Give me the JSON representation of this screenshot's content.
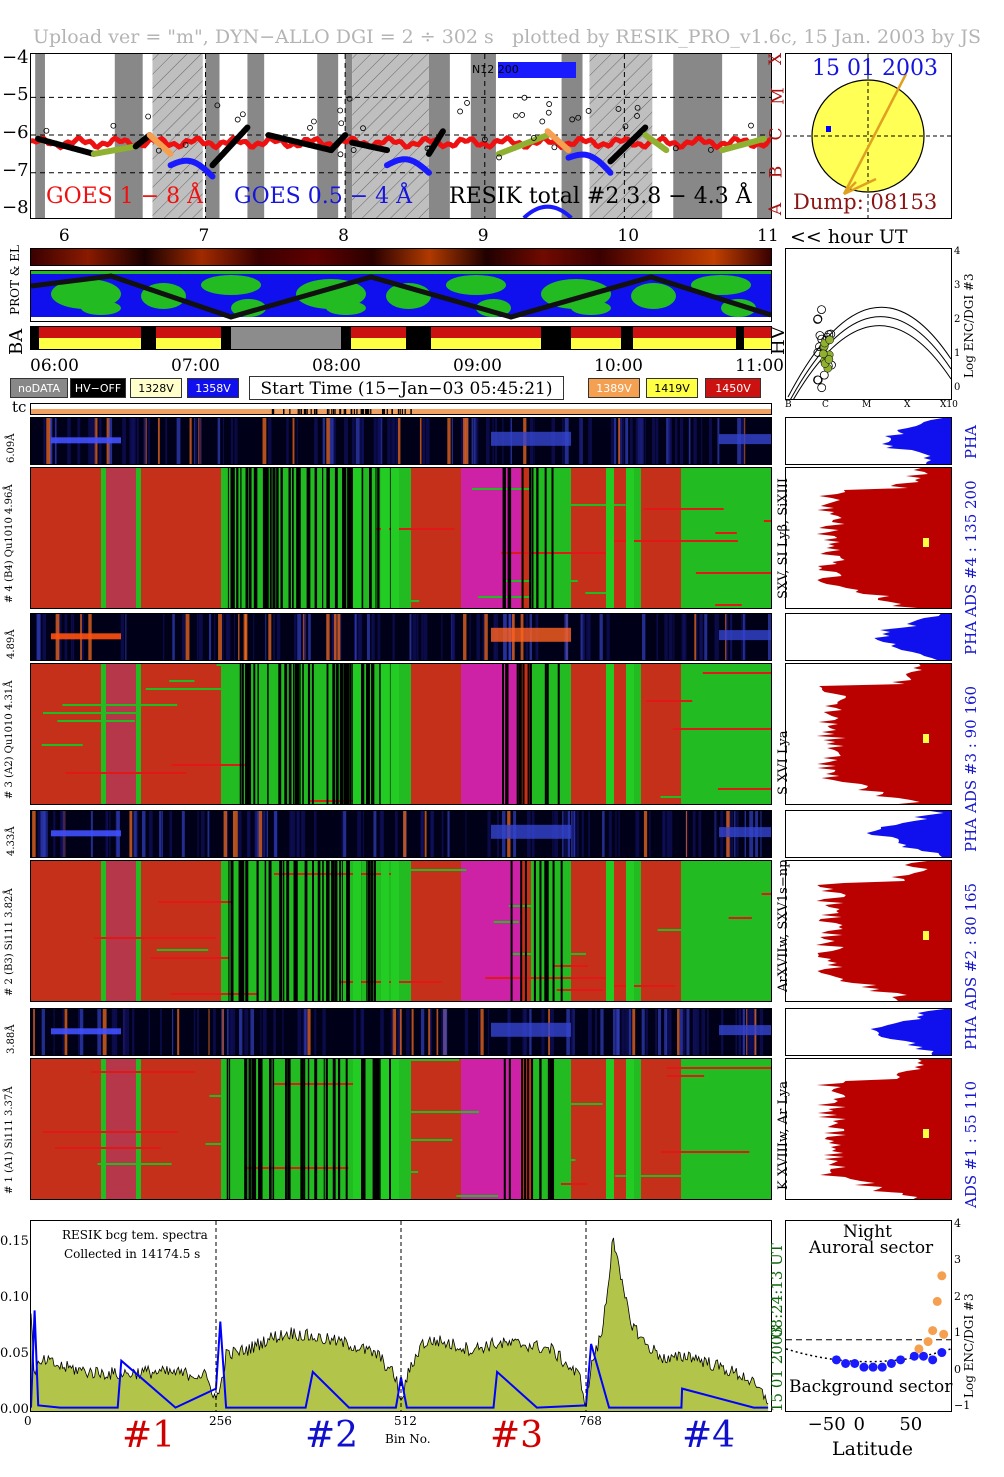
{
  "header": {
    "left": "Upload ver = \"m\", DYN−ALLO DGI =   2 ÷ 302 s",
    "right": "plotted by RESIK_PRO_v1.6c, 15 Jan. 2003 by JS"
  },
  "goes_panel": {
    "yticks": [
      "−4",
      "−5",
      "−6",
      "−7",
      "−8"
    ],
    "class_labels": [
      "X",
      "M",
      "C",
      "B",
      "A"
    ],
    "xticks": [
      "6",
      "7",
      "8",
      "9",
      "10",
      "11"
    ],
    "legend_goes_long": "GOES 1 − 8 Å",
    "legend_goes_short": "GOES 0.5 − 4 Å",
    "legend_resik": "RESIK total #2  3.8 − 4.3 Å",
    "noaa_tag": "N12 200",
    "hour_label": "<< hour UT"
  },
  "sun_panel": {
    "date": "15 01 2003",
    "dump": "Dump: 08153"
  },
  "orbit_panel": {
    "prot_label": "PROT & EL",
    "ba_label": "BA",
    "hv_label": "HV",
    "times": [
      "06:00",
      "07:00",
      "08:00",
      "09:00",
      "10:00",
      "11:00"
    ]
  },
  "legend": {
    "nodata": "noDATA",
    "hvoff": "HV−OFF",
    "v1328": "1328V",
    "v1358": "1358V",
    "start_time": "Start Time (15−Jan−03 05:45:21)",
    "v1389": "1389V",
    "v1419": "1419V",
    "v1450": "1450V",
    "tc": "tc"
  },
  "enc_panel": {
    "ylabel": "Log ENC/DGI #3",
    "yticks": [
      "4",
      "3",
      "2",
      "1",
      "0"
    ],
    "xticks": [
      "B",
      "C",
      "M",
      "X",
      "X10"
    ]
  },
  "channels": [
    {
      "pha_label": "6.09Å",
      "spec_label": "# 4 (B4) Qu1010 4.96Å",
      "lines": "SXV, SI Lyβ, SiXIII",
      "ads": "ADS #4 :   135 200",
      "pha": "PHA"
    },
    {
      "pha_label": "4.89Å",
      "spec_label": "# 3 (A2) Qu1010 4.31Å",
      "lines": "S XVI Lya",
      "ads": "ADS #3 :    90 160",
      "pha": "PHA"
    },
    {
      "pha_label": "4.33Å",
      "spec_label": "# 2 (B3) Si111 3.82Å",
      "lines": "ArXVIIw, SXV1s−np",
      "ads": "ADS #2 :    80 165",
      "pha": "PHA"
    },
    {
      "pha_label": "3.88Å",
      "spec_label": "# 1 (A1) Si111 3.37Å",
      "lines": "K XVIIIw, Ar Lya",
      "ads": "ADS #1 :    55 110",
      "pha": "PHA"
    }
  ],
  "spectrum": {
    "note1": "RESIK bcg tem. spectra",
    "note2": "Collected in 14174.5 s",
    "yticks": [
      "0.15",
      "0.10",
      "0.05",
      "0.00"
    ],
    "xticks": [
      "0",
      "256",
      "512",
      "768"
    ],
    "xlabel": "Bin No.",
    "side_time": "08:24:13 UT",
    "side_date": "15 01 2003",
    "channel_labels": [
      "#1",
      "#2",
      "#3",
      "#4"
    ],
    "channel_colors": [
      "#d10000",
      "#1010cc",
      "#d10000",
      "#1010cc"
    ]
  },
  "lat_panel": {
    "title1": "Night",
    "title2": "Auroral sector",
    "bottom": "Background sector",
    "xlabel": "Latitude",
    "xticks": [
      "−50",
      "0",
      "50"
    ],
    "yticks": [
      "4",
      "3",
      "2",
      "1",
      "0",
      "−1"
    ],
    "ylabel": "Log ENC/DGI #3"
  },
  "chart_data": {
    "type": "line",
    "title": "RESIK bcg tem. spectra",
    "xlabel": "Bin No.",
    "ylabel": "",
    "xlim": [
      0,
      1024
    ],
    "ylim": [
      0,
      0.17
    ],
    "x_ticks": [
      0,
      256,
      512,
      768
    ],
    "y_ticks": [
      0.0,
      0.05,
      0.1,
      0.15
    ],
    "series": [
      {
        "name": "",
        "color": "#b2c44a",
        "x": [
          0,
          5,
          10,
          20,
          40,
          80,
          120,
          160,
          200,
          240,
          250,
          256,
          262,
          270,
          300,
          330,
          360,
          400,
          440,
          480,
          505,
          512,
          520,
          540,
          560,
          580,
          610,
          640,
          680,
          720,
          760,
          768,
          775,
          790,
          800,
          805,
          815,
          830,
          850,
          880,
          910,
          950,
          990,
          1020
        ],
        "values": [
          0.085,
          0.03,
          0.04,
          0.045,
          0.04,
          0.035,
          0.033,
          0.035,
          0.034,
          0.032,
          0.02,
          0.01,
          0.02,
          0.05,
          0.055,
          0.065,
          0.07,
          0.065,
          0.06,
          0.05,
          0.03,
          0.005,
          0.03,
          0.06,
          0.063,
          0.06,
          0.055,
          0.06,
          0.06,
          0.055,
          0.03,
          0.005,
          0.04,
          0.07,
          0.12,
          0.16,
          0.12,
          0.08,
          0.06,
          0.045,
          0.05,
          0.04,
          0.03,
          0.01
        ]
      },
      {
        "name": "",
        "color": "#0000ff",
        "x": [
          0,
          5,
          10,
          40,
          100,
          120,
          125,
          200,
          256,
          262,
          270,
          300,
          380,
          390,
          440,
          505,
          512,
          520,
          560,
          640,
          645,
          700,
          768,
          775,
          800,
          900,
          901,
          1000,
          1020
        ],
        "values": [
          0.003,
          0.09,
          0.005,
          0.003,
          0.003,
          0.003,
          0.045,
          0.003,
          0.02,
          0.08,
          0.003,
          0.003,
          0.003,
          0.035,
          0.003,
          0.003,
          0.03,
          0.003,
          0.003,
          0.003,
          0.035,
          0.003,
          0.005,
          0.06,
          0.003,
          0.003,
          0.02,
          0.003,
          0.003
        ]
      }
    ],
    "goes": {
      "x_hours": [
        5.75,
        6.2,
        6.6,
        7.0,
        7.4,
        7.8,
        8.2,
        8.6,
        9.0,
        9.4,
        9.8,
        10.2,
        10.6,
        11.0
      ],
      "long_log": [
        -6.2,
        -6.2,
        -6.25,
        -6.3,
        -6.25,
        -6.2,
        -6.2,
        -6.25,
        -6.25,
        -6.2,
        -6.2,
        -6.3,
        -6.3,
        -6.2
      ],
      "resik_log": [
        -6.5,
        -6.4,
        -5.9,
        -6.6,
        -5.8,
        -6.2,
        -6.2,
        -6.3,
        -6.1,
        -5.9,
        -5.9,
        -6.2,
        -6.1,
        -6.0
      ]
    },
    "latitude": {
      "background": {
        "lat": [
          -35,
          -25,
          -15,
          -5,
          5,
          15,
          25,
          35,
          50,
          60,
          70,
          80
        ],
        "log_enc": [
          0.3,
          0.2,
          0.2,
          0.1,
          0.1,
          0.1,
          0.2,
          0.3,
          0.4,
          0.4,
          0.3,
          0.5
        ]
      },
      "auroral": {
        "lat": [
          55,
          65,
          70,
          75,
          80,
          82
        ],
        "log_enc": [
          0.6,
          0.8,
          1.1,
          1.9,
          2.6,
          1.0
        ]
      }
    }
  }
}
